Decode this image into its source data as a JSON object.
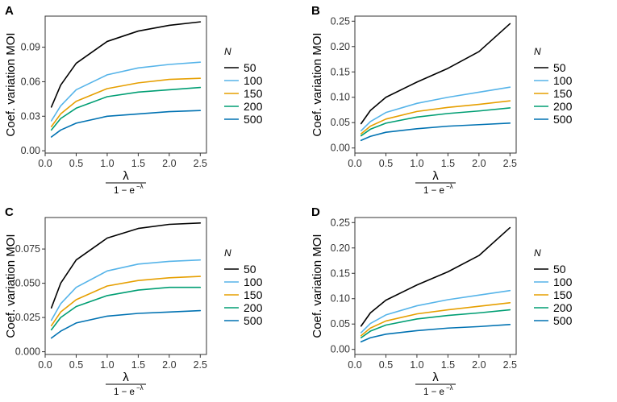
{
  "figure": {
    "legend_title": "N",
    "x_axis_numerator": "λ",
    "x_axis_denominator": "1 − e",
    "x_axis_exponent": "−λ",
    "y_axis_label": "Coef. variation MOI",
    "colors": {
      "50": "#000000",
      "100": "#56B4E9",
      "150": "#E69F00",
      "200": "#009E73",
      "500": "#0072B2"
    }
  },
  "chart_data": [
    {
      "panel": "A",
      "type": "line",
      "xlabel": "λ / (1 − e^−λ)",
      "ylabel": "Coef. variation MOI",
      "x": [
        0.1,
        0.25,
        0.5,
        1.0,
        1.5,
        2.0,
        2.5
      ],
      "xlim": [
        0.0,
        2.6
      ],
      "ylim": [
        -0.002,
        0.117
      ],
      "xticks": [
        "0.0",
        "0.5",
        "1.0",
        "1.5",
        "2.0",
        "2.5"
      ],
      "yticks": [
        "0.00",
        "0.03",
        "0.06",
        "0.09"
      ],
      "ytick_values": [
        0.0,
        0.03,
        0.06,
        0.09
      ],
      "legend_title": "N",
      "series": [
        {
          "name": "50",
          "color": "#000000",
          "values": [
            0.038,
            0.057,
            0.076,
            0.095,
            0.104,
            0.109,
            0.112
          ]
        },
        {
          "name": "100",
          "color": "#56B4E9",
          "values": [
            0.026,
            0.039,
            0.053,
            0.066,
            0.072,
            0.075,
            0.077
          ]
        },
        {
          "name": "150",
          "color": "#E69F00",
          "values": [
            0.021,
            0.032,
            0.043,
            0.054,
            0.059,
            0.062,
            0.063
          ]
        },
        {
          "name": "200",
          "color": "#009E73",
          "values": [
            0.018,
            0.028,
            0.037,
            0.047,
            0.051,
            0.053,
            0.055
          ]
        },
        {
          "name": "500",
          "color": "#0072B2",
          "values": [
            0.012,
            0.018,
            0.024,
            0.03,
            0.032,
            0.034,
            0.035
          ]
        }
      ]
    },
    {
      "panel": "B",
      "type": "line",
      "xlabel": "λ / (1 − e^−λ)",
      "ylabel": "Coef. variation MOI",
      "x": [
        0.1,
        0.25,
        0.5,
        1.0,
        1.5,
        2.0,
        2.5
      ],
      "xlim": [
        0.0,
        2.6
      ],
      "ylim": [
        -0.01,
        0.26
      ],
      "xticks": [
        "0.0",
        "0.5",
        "1.0",
        "1.5",
        "2.0",
        "2.5"
      ],
      "yticks": [
        "0.00",
        "0.05",
        "0.10",
        "0.15",
        "0.20",
        "0.25"
      ],
      "ytick_values": [
        0.0,
        0.05,
        0.1,
        0.15,
        0.2,
        0.25
      ],
      "legend_title": "N",
      "series": [
        {
          "name": "50",
          "color": "#000000",
          "values": [
            0.048,
            0.074,
            0.1,
            0.13,
            0.157,
            0.19,
            0.245
          ]
        },
        {
          "name": "100",
          "color": "#56B4E9",
          "values": [
            0.034,
            0.052,
            0.07,
            0.088,
            0.1,
            0.11,
            0.12
          ]
        },
        {
          "name": "150",
          "color": "#E69F00",
          "values": [
            0.028,
            0.043,
            0.057,
            0.072,
            0.08,
            0.086,
            0.093
          ]
        },
        {
          "name": "200",
          "color": "#009E73",
          "values": [
            0.024,
            0.037,
            0.049,
            0.061,
            0.068,
            0.073,
            0.079
          ]
        },
        {
          "name": "500",
          "color": "#0072B2",
          "values": [
            0.015,
            0.023,
            0.031,
            0.038,
            0.043,
            0.046,
            0.049
          ]
        }
      ]
    },
    {
      "panel": "C",
      "type": "line",
      "xlabel": "λ / (1 − e^−λ)",
      "ylabel": "Coef. variation MOI",
      "x": [
        0.1,
        0.25,
        0.5,
        1.0,
        1.5,
        2.0,
        2.5
      ],
      "xlim": [
        0.0,
        2.6
      ],
      "ylim": [
        -0.002,
        0.098
      ],
      "xticks": [
        "0.0",
        "0.5",
        "1.0",
        "1.5",
        "2.0",
        "2.5"
      ],
      "yticks": [
        "0.000",
        "0.025",
        "0.050",
        "0.075"
      ],
      "ytick_values": [
        0.0,
        0.025,
        0.05,
        0.075
      ],
      "legend_title": "N",
      "series": [
        {
          "name": "50",
          "color": "#000000",
          "values": [
            0.032,
            0.05,
            0.067,
            0.083,
            0.09,
            0.093,
            0.094
          ]
        },
        {
          "name": "100",
          "color": "#56B4E9",
          "values": [
            0.023,
            0.035,
            0.047,
            0.059,
            0.064,
            0.066,
            0.067
          ]
        },
        {
          "name": "150",
          "color": "#E69F00",
          "values": [
            0.019,
            0.029,
            0.038,
            0.048,
            0.052,
            0.054,
            0.055
          ]
        },
        {
          "name": "200",
          "color": "#009E73",
          "values": [
            0.016,
            0.025,
            0.033,
            0.041,
            0.045,
            0.047,
            0.047
          ]
        },
        {
          "name": "500",
          "color": "#0072B2",
          "values": [
            0.01,
            0.015,
            0.021,
            0.026,
            0.028,
            0.029,
            0.03
          ]
        }
      ]
    },
    {
      "panel": "D",
      "type": "line",
      "xlabel": "λ / (1 − e^−λ)",
      "ylabel": "Coef. variation MOI",
      "x": [
        0.1,
        0.25,
        0.5,
        1.0,
        1.5,
        2.0,
        2.5
      ],
      "xlim": [
        0.0,
        2.6
      ],
      "ylim": [
        -0.01,
        0.26
      ],
      "xticks": [
        "0.0",
        "0.5",
        "1.0",
        "1.5",
        "2.0",
        "2.5"
      ],
      "yticks": [
        "0.00",
        "0.05",
        "0.10",
        "0.15",
        "0.20",
        "0.25"
      ],
      "ytick_values": [
        0.0,
        0.05,
        0.1,
        0.15,
        0.2,
        0.25
      ],
      "legend_title": "N",
      "series": [
        {
          "name": "50",
          "color": "#000000",
          "values": [
            0.046,
            0.072,
            0.097,
            0.127,
            0.153,
            0.185,
            0.24
          ]
        },
        {
          "name": "100",
          "color": "#56B4E9",
          "values": [
            0.033,
            0.051,
            0.068,
            0.086,
            0.098,
            0.107,
            0.116
          ]
        },
        {
          "name": "150",
          "color": "#E69F00",
          "values": [
            0.027,
            0.042,
            0.056,
            0.07,
            0.078,
            0.085,
            0.092
          ]
        },
        {
          "name": "200",
          "color": "#009E73",
          "values": [
            0.023,
            0.036,
            0.048,
            0.06,
            0.067,
            0.072,
            0.078
          ]
        },
        {
          "name": "500",
          "color": "#0072B2",
          "values": [
            0.015,
            0.023,
            0.03,
            0.037,
            0.042,
            0.045,
            0.049
          ]
        }
      ]
    }
  ]
}
